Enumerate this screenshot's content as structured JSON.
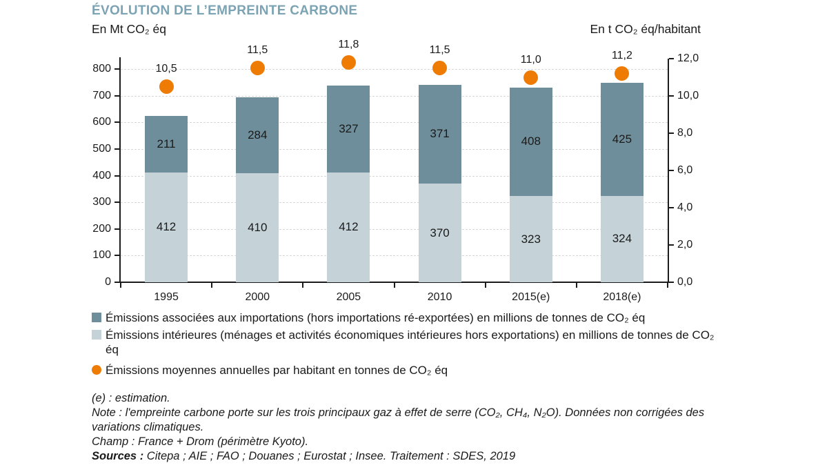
{
  "header": {
    "title": "ÉVOLUTION DE L’EMPREINTE CARBONE",
    "left_axis_title": "En Mt CO₂ éq",
    "right_axis_title": "En t CO₂ éq/habitant"
  },
  "chart_data": {
    "type": "bar",
    "subtype": "stacked-bars-with-right-axis-points",
    "title": "ÉVOLUTION DE L’EMPREINTE CARBONE",
    "categories": [
      "1995",
      "2000",
      "2005",
      "2010",
      "2015(e)",
      "2018(e)"
    ],
    "series": [
      {
        "name": "Émissions intérieures (ménages et activités économiques intérieures hors exportations) en millions de tonnes de CO₂ éq",
        "type": "bar-bottom-segment",
        "axis": "left",
        "color": "#c5d3d8",
        "values": [
          412,
          410,
          412,
          370,
          323,
          324
        ]
      },
      {
        "name": "Émissions associées aux importations (hors importations ré-exportées) en millions de tonnes de CO₂ éq",
        "type": "bar-top-segment",
        "axis": "left",
        "color": "#6f8e9b",
        "values": [
          211,
          284,
          327,
          371,
          408,
          425
        ]
      },
      {
        "name": "Émissions moyennes annuelles par habitant en tonnes de CO₂ éq",
        "type": "point",
        "axis": "right",
        "color": "#ee7c04",
        "values": [
          10.5,
          11.5,
          11.8,
          11.5,
          11.0,
          11.2
        ],
        "value_labels": [
          "10,5",
          "11,5",
          "11,8",
          "11,5",
          "11,0",
          "11,2"
        ]
      }
    ],
    "left_axis": {
      "title": "En Mt CO₂ éq",
      "min": 0,
      "max": 800,
      "tick_step": 100,
      "tick_labels": [
        "0",
        "100",
        "200",
        "300",
        "400",
        "500",
        "600",
        "700",
        "800"
      ]
    },
    "right_axis": {
      "title": "En t CO₂ éq/habitant",
      "min": 0,
      "max": 12,
      "tick_step": 2,
      "tick_labels": [
        "0,0",
        "2,0",
        "4,0",
        "6,0",
        "8,0",
        "10,0",
        "12,0"
      ]
    },
    "grid": {
      "horizontal": true,
      "style": "dashed",
      "color": "#d6d6d6"
    },
    "legend_position": "bottom"
  },
  "legend": [
    {
      "marker": "square",
      "color": "#6f8e9b",
      "label": "Émissions associées aux importations (hors importations ré-exportées) en millions de tonnes de CO₂ éq"
    },
    {
      "marker": "square",
      "color": "#c5d3d8",
      "label": "Émissions intérieures (ménages et activités économiques intérieures hors exportations) en millions de tonnes de CO₂ éq"
    },
    {
      "marker": "circle",
      "color": "#ee7c04",
      "label": "Émissions moyennes annuelles par habitant en tonnes de CO₂ éq"
    }
  ],
  "notes": {
    "estimation": "(e) : estimation.",
    "note": "Note : l'empreinte carbone porte sur les trois principaux gaz à effet de serre (CO₂, CH₄, N₂O). Données non corrigées des variations climatiques.",
    "champ": "Champ : France + Drom (périmètre Kyoto).",
    "sources_label": "Sources :",
    "sources_text": " Citepa ; AIE ; FAO ; Douanes ; Eurostat ; Insee. Traitement : SDES, 2019"
  },
  "colors": {
    "title": "#7ba3b3",
    "bar_imports": "#6f8e9b",
    "bar_domestic": "#c5d3d8",
    "per_capita_dot": "#ee7c04",
    "gridline": "#d6d6d6",
    "axis": "#1a1a1a",
    "text": "#1a1a1a"
  }
}
